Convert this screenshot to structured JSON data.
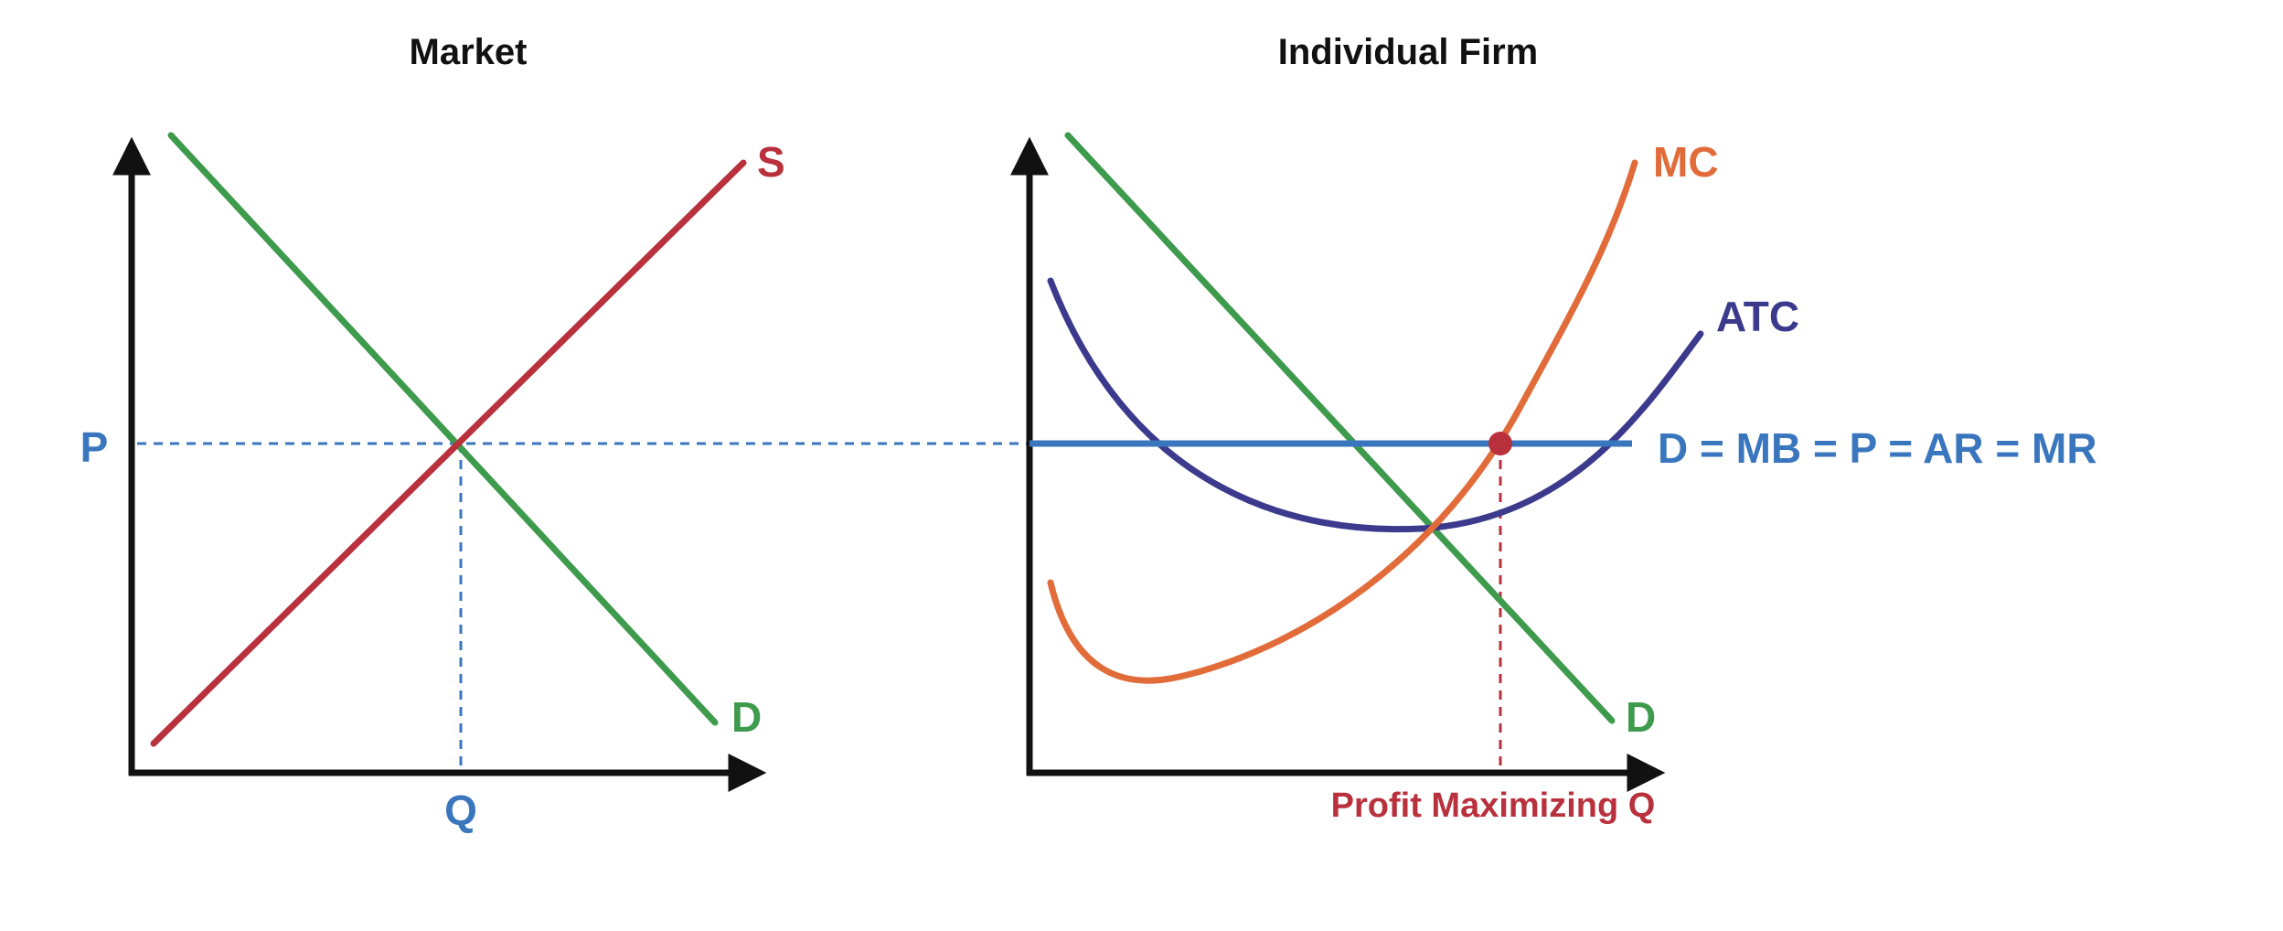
{
  "panels": {
    "market": {
      "title": "Market",
      "supply_label": "S",
      "demand_label": "D",
      "price_label": "P",
      "quantity_label": "Q"
    },
    "firm": {
      "title": "Individual Firm",
      "mc_label": "MC",
      "atc_label": "ATC",
      "price_line_label": "D = MB = P = AR = MR",
      "demand_label": "D",
      "quantity_label": "Profit Maximizing Q"
    }
  },
  "colors": {
    "axis": "#111111",
    "demand": "#3e9a4c",
    "supply": "#b8313d",
    "price": "#3a76bd",
    "mc": "#e26b3a",
    "atc": "#3b3a8c",
    "profit_q": "#b8313d"
  }
}
